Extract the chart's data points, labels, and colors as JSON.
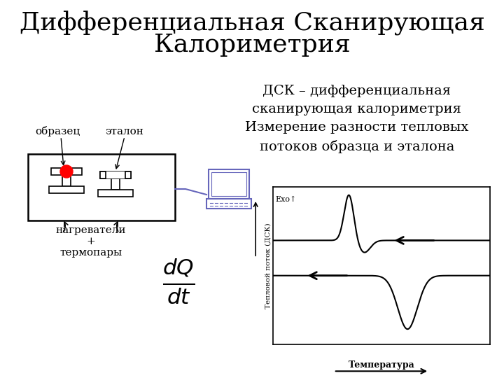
{
  "title_line1": "Дифференциальная Сканирующая",
  "title_line2": "Калориметрия",
  "title_fontsize": 26,
  "title_color": "#000000",
  "bg_color": "#ffffff",
  "desc_text": "ДСК – дифференциальная\nсканирующая калориметрия\nИзмерение разности тепловых\nпотоков образца и эталона",
  "desc_fontsize": 14,
  "label_obrazec": "образец",
  "label_etalon": "эталон",
  "label_nagrev": "нагреватели\n+\nтермопары",
  "graph_xlabel": "Температура",
  "graph_ylabel": "Тепловой поток (ДСК)",
  "graph_exo_label": "Exo↑",
  "laptop_color": "#6666bb"
}
